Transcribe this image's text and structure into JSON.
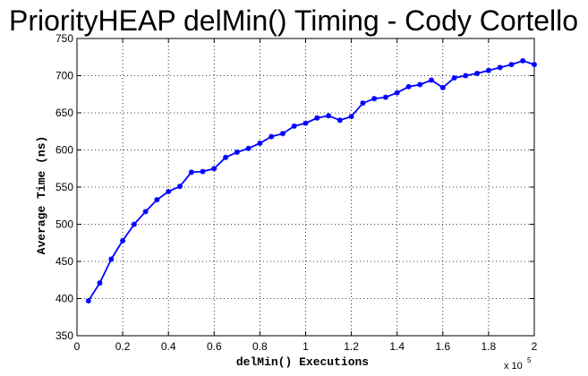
{
  "chart_data": {
    "type": "line",
    "title": "PriorityHEAP delMin() Timing - Cody Cortello",
    "xlabel": "delMin() Executions",
    "ylabel": "Average Time (ns)",
    "x_multiplier_label": "x 10",
    "x_multiplier_exponent": "5",
    "xlim": [
      0,
      2
    ],
    "ylim": [
      350,
      750
    ],
    "x_ticks": [
      0,
      0.2,
      0.4,
      0.6,
      0.8,
      1,
      1.2,
      1.4,
      1.6,
      1.8,
      2
    ],
    "x_tick_labels": [
      "0",
      "0.2",
      "0.4",
      "0.6",
      "0.8",
      "1",
      "1.2",
      "1.4",
      "1.6",
      "1.8",
      "2"
    ],
    "y_ticks": [
      350,
      400,
      450,
      500,
      550,
      600,
      650,
      700,
      750
    ],
    "y_tick_labels": [
      "350",
      "400",
      "450",
      "500",
      "550",
      "600",
      "650",
      "700",
      "750"
    ],
    "grid": true,
    "grid_style": "dotted",
    "series": [
      {
        "color": "#0000ff",
        "marker": "asterisk",
        "x": [
          0.05,
          0.1,
          0.15,
          0.2,
          0.25,
          0.3,
          0.35,
          0.4,
          0.45,
          0.5,
          0.55,
          0.6,
          0.65,
          0.7,
          0.75,
          0.8,
          0.85,
          0.9,
          0.95,
          1.0,
          1.05,
          1.1,
          1.15,
          1.2,
          1.25,
          1.3,
          1.35,
          1.4,
          1.45,
          1.5,
          1.55,
          1.6,
          1.65,
          1.7,
          1.75,
          1.8,
          1.85,
          1.9,
          1.95,
          2.0
        ],
        "y": [
          397,
          421,
          453,
          478,
          500,
          517,
          533,
          544,
          551,
          570,
          571,
          575,
          590,
          597,
          602,
          609,
          618,
          622,
          632,
          636,
          643,
          646,
          640,
          645,
          663,
          669,
          671,
          677,
          685,
          688,
          694,
          684,
          697,
          700,
          703,
          707,
          711,
          715,
          720,
          715
        ]
      }
    ]
  }
}
